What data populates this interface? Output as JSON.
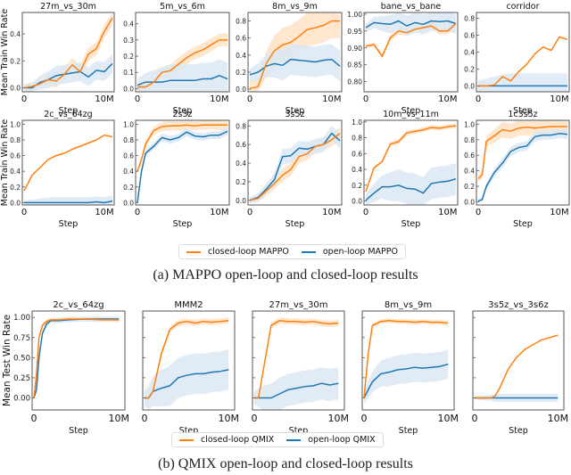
{
  "colors": {
    "closed": "#ff7f0e",
    "open": "#1f77b4",
    "closed_band": "#ffe3c7",
    "open_band": "#dbe8f4"
  },
  "captions": {
    "a": "(a) MAPPO open-loop and closed-loop results",
    "b": "(b) QMIX open-loop and closed-loop results"
  },
  "legends": {
    "mappo": {
      "closed": "closed-loop MAPPO",
      "open": "open-loop MAPPO"
    },
    "qmix": {
      "closed": "closed-loop QMIX",
      "open": "open-loop QMIX"
    }
  },
  "chart_data": [
    {
      "type": "line",
      "group": "mappo",
      "title": "27m_vs_30m",
      "xlabel": "Step",
      "ylabel": "Mean Train Win Rate",
      "xlim": [
        0,
        11
      ],
      "xticks": [
        "0",
        "10M"
      ],
      "ylim": [
        -0.03,
        0.56
      ],
      "yticks": [
        0.0,
        0.2,
        0.4
      ],
      "ytick_labels": [
        "0.0",
        "0.2",
        "0.4"
      ],
      "x": [
        0,
        1,
        2,
        3,
        4,
        5,
        6,
        7,
        8,
        9,
        10,
        11
      ],
      "series": [
        {
          "name": "closed-loop MAPPO",
          "values": [
            0,
            0.01,
            0.03,
            0.06,
            0.05,
            0.1,
            0.17,
            0.12,
            0.25,
            0.29,
            0.42,
            0.52
          ]
        },
        {
          "name": "open-loop MAPPO",
          "values": [
            0,
            0.0,
            0.04,
            0.06,
            0.09,
            0.1,
            0.11,
            0.12,
            0.08,
            0.13,
            0.12,
            0.18
          ]
        }
      ]
    },
    {
      "type": "line",
      "group": "mappo",
      "title": "5m_vs_6m",
      "xlabel": "Step",
      "ylabel": "",
      "xlim": [
        0,
        11
      ],
      "xticks": [
        "0",
        "10M"
      ],
      "ylim": [
        -0.02,
        0.47
      ],
      "yticks": [
        0.0,
        0.1,
        0.2,
        0.3,
        0.4
      ],
      "ytick_labels": [
        "0.0",
        "0.1",
        "0.2",
        "0.3",
        "0.4"
      ],
      "x": [
        0,
        1,
        2,
        3,
        4,
        5,
        6,
        7,
        8,
        9,
        10,
        11
      ],
      "series": [
        {
          "name": "closed-loop MAPPO",
          "values": [
            0.01,
            0.01,
            0.04,
            0.1,
            0.11,
            0.15,
            0.19,
            0.22,
            0.24,
            0.27,
            0.3,
            0.3
          ]
        },
        {
          "name": "open-loop MAPPO",
          "values": [
            0.02,
            0.04,
            0.04,
            0.04,
            0.05,
            0.05,
            0.05,
            0.05,
            0.06,
            0.06,
            0.08,
            0.06
          ]
        }
      ]
    },
    {
      "type": "line",
      "group": "mappo",
      "title": "8m_vs_9m",
      "xlabel": "Step",
      "ylabel": "",
      "xlim": [
        0,
        11
      ],
      "xticks": [
        "0",
        "10M"
      ],
      "ylim": [
        -0.03,
        0.9
      ],
      "yticks": [
        0.0,
        0.2,
        0.4,
        0.6,
        0.8
      ],
      "ytick_labels": [
        "0.0",
        "0.2",
        "0.4",
        "0.6",
        "0.8"
      ],
      "x": [
        0,
        1,
        2,
        3,
        4,
        5,
        6,
        7,
        8,
        9,
        10,
        11
      ],
      "series": [
        {
          "name": "closed-loop MAPPO",
          "values": [
            0.01,
            0.03,
            0.3,
            0.45,
            0.52,
            0.55,
            0.62,
            0.7,
            0.72,
            0.75,
            0.8,
            0.8
          ]
        },
        {
          "name": "open-loop MAPPO",
          "values": [
            0.17,
            0.2,
            0.27,
            0.3,
            0.28,
            0.35,
            0.34,
            0.33,
            0.32,
            0.34,
            0.35,
            0.27
          ]
        }
      ]
    },
    {
      "type": "line",
      "group": "mappo",
      "title": "bane_vs_bane",
      "xlabel": "Step",
      "ylabel": "",
      "xlim": [
        0,
        11
      ],
      "xticks": [
        "0",
        "10M"
      ],
      "ylim": [
        0.77,
        1.005
      ],
      "yticks": [
        0.8,
        0.85,
        0.9,
        0.95,
        1.0
      ],
      "ytick_labels": [
        "0.80",
        "0.85",
        "0.90",
        "0.95",
        "1.00"
      ],
      "x": [
        0,
        1,
        2,
        3,
        4,
        5,
        6,
        7,
        8,
        9,
        10,
        11
      ],
      "series": [
        {
          "name": "closed-loop MAPPO",
          "values": [
            0.905,
            0.91,
            0.875,
            0.93,
            0.95,
            0.945,
            0.955,
            0.96,
            0.965,
            0.95,
            0.95,
            0.972
          ]
        },
        {
          "name": "open-loop MAPPO",
          "values": [
            0.96,
            0.975,
            0.972,
            0.97,
            0.98,
            0.965,
            0.975,
            0.97,
            0.98,
            0.978,
            0.98,
            0.972
          ]
        }
      ]
    },
    {
      "type": "line",
      "group": "mappo",
      "title": "corridor",
      "xlabel": "Step",
      "ylabel": "",
      "xlim": [
        0,
        11
      ],
      "xticks": [
        "0",
        "10M"
      ],
      "ylim": [
        -0.07,
        0.87
      ],
      "yticks": [
        0.0,
        0.2,
        0.4,
        0.6,
        0.8
      ],
      "ytick_labels": [
        "0.0",
        "0.2",
        "0.4",
        "0.6",
        "0.8"
      ],
      "x": [
        0,
        1,
        2,
        3,
        4,
        5,
        6,
        7,
        8,
        9,
        10,
        11
      ],
      "series": [
        {
          "name": "closed-loop MAPPO",
          "values": [
            0,
            0,
            0.01,
            0.11,
            0.06,
            0.17,
            0.26,
            0.38,
            0.46,
            0.42,
            0.58,
            0.55
          ]
        },
        {
          "name": "open-loop MAPPO",
          "values": [
            0,
            0,
            0,
            0,
            0,
            0,
            0,
            0,
            0,
            0,
            0,
            0
          ]
        }
      ]
    },
    {
      "type": "line",
      "group": "mappo",
      "title": "2c_vs_64zg",
      "xlabel": "Step",
      "ylabel": "Mean Train Win Rate",
      "xlim": [
        0,
        11
      ],
      "xticks": [
        "0",
        "10M"
      ],
      "ylim": [
        -0.03,
        1.05
      ],
      "yticks": [
        0.0,
        0.2,
        0.4,
        0.6,
        0.8,
        1.0
      ],
      "ytick_labels": [
        "0.0",
        "0.2",
        "0.4",
        "0.6",
        "0.8",
        "1.0"
      ],
      "x": [
        0,
        1,
        2,
        3,
        4,
        5,
        6,
        7,
        8,
        9,
        10,
        11
      ],
      "series": [
        {
          "name": "closed-loop MAPPO",
          "values": [
            0.15,
            0.35,
            0.45,
            0.55,
            0.6,
            0.63,
            0.68,
            0.72,
            0.76,
            0.8,
            0.86,
            0.84
          ]
        },
        {
          "name": "open-loop MAPPO",
          "values": [
            0,
            0,
            0,
            0,
            0,
            0,
            0,
            0,
            0,
            0.01,
            0.0,
            0.02
          ]
        }
      ]
    },
    {
      "type": "line",
      "group": "mappo",
      "title": "2s3z",
      "xlabel": "Step",
      "ylabel": "",
      "xlim": [
        0,
        11
      ],
      "xticks": [
        "0",
        "10M"
      ],
      "ylim": [
        -0.03,
        1.05
      ],
      "yticks": [
        0.0,
        0.2,
        0.4,
        0.6,
        0.8,
        1.0
      ],
      "ytick_labels": [
        "0.0",
        "0.2",
        "0.4",
        "0.6",
        "0.8",
        "1.0"
      ],
      "x": [
        0,
        0.5,
        1,
        2,
        3,
        4,
        5,
        6,
        7,
        8,
        9,
        10,
        11
      ],
      "series": [
        {
          "name": "closed-loop MAPPO",
          "values": [
            0.4,
            0.55,
            0.75,
            0.92,
            0.97,
            0.98,
            0.98,
            0.99,
            0.98,
            0.99,
            0.99,
            0.99,
            0.99
          ]
        },
        {
          "name": "open-loop MAPPO",
          "values": [
            0.0,
            0.4,
            0.63,
            0.72,
            0.83,
            0.8,
            0.83,
            0.9,
            0.85,
            0.84,
            0.86,
            0.86,
            0.91
          ]
        }
      ]
    },
    {
      "type": "line",
      "group": "mappo",
      "title": "3s5z",
      "xlabel": "Step",
      "ylabel": "",
      "xlim": [
        0,
        11
      ],
      "xticks": [
        "0",
        "10M"
      ],
      "ylim": [
        -0.05,
        0.86
      ],
      "yticks": [
        0.0,
        0.2,
        0.4,
        0.6,
        0.8
      ],
      "ytick_labels": [
        "0.0",
        "0.2",
        "0.4",
        "0.6",
        "0.8"
      ],
      "x": [
        0,
        1,
        2,
        3,
        4,
        5,
        6,
        7,
        8,
        9,
        10,
        11
      ],
      "series": [
        {
          "name": "closed-loop MAPPO",
          "values": [
            0,
            0.02,
            0.1,
            0.18,
            0.27,
            0.33,
            0.47,
            0.5,
            0.58,
            0.6,
            0.65,
            0.72
          ]
        },
        {
          "name": "open-loop MAPPO",
          "values": [
            0,
            0.03,
            0.12,
            0.22,
            0.47,
            0.48,
            0.56,
            0.55,
            0.58,
            0.6,
            0.72,
            0.64
          ]
        }
      ]
    },
    {
      "type": "line",
      "group": "mappo",
      "title": "10m_vs_11m",
      "xlabel": "Step",
      "ylabel": "",
      "xlim": [
        0,
        11
      ],
      "xticks": [
        "0",
        "10M"
      ],
      "ylim": [
        -0.05,
        1.02
      ],
      "yticks": [
        0.0,
        0.2,
        0.4,
        0.6,
        0.8,
        1.0
      ],
      "ytick_labels": [
        "0.0",
        "0.2",
        "0.4",
        "0.6",
        "0.8",
        "1.0"
      ],
      "x": [
        0,
        1,
        2,
        3,
        4,
        5,
        6,
        7,
        8,
        9,
        10,
        11
      ],
      "series": [
        {
          "name": "closed-loop MAPPO",
          "values": [
            0.12,
            0.42,
            0.5,
            0.72,
            0.75,
            0.86,
            0.88,
            0.9,
            0.93,
            0.92,
            0.94,
            0.95
          ]
        },
        {
          "name": "open-loop MAPPO",
          "values": [
            0.01,
            0.1,
            0.18,
            0.18,
            0.2,
            0.16,
            0.15,
            0.1,
            0.22,
            0.24,
            0.25,
            0.28
          ]
        }
      ]
    },
    {
      "type": "line",
      "group": "mappo",
      "title": "1c3s5z",
      "xlabel": "Step",
      "ylabel": "",
      "xlim": [
        0,
        11
      ],
      "xticks": [
        "0",
        "10M"
      ],
      "ylim": [
        -0.04,
        1.05
      ],
      "yticks": [
        0.0,
        0.2,
        0.4,
        0.6,
        0.8,
        1.0
      ],
      "ytick_labels": [
        "0.0",
        "0.2",
        "0.4",
        "0.6",
        "0.8",
        "1.0"
      ],
      "x": [
        0,
        0.5,
        1,
        2,
        3,
        4,
        5,
        6,
        7,
        8,
        9,
        10,
        11
      ],
      "series": [
        {
          "name": "closed-loop MAPPO",
          "values": [
            0.3,
            0.35,
            0.78,
            0.85,
            0.93,
            0.91,
            0.95,
            0.96,
            0.95,
            0.96,
            0.97,
            0.97,
            0.97
          ]
        },
        {
          "name": "open-loop MAPPO",
          "values": [
            0.01,
            0.03,
            0.2,
            0.38,
            0.5,
            0.65,
            0.7,
            0.72,
            0.84,
            0.86,
            0.86,
            0.88,
            0.87
          ]
        }
      ]
    },
    {
      "type": "line",
      "group": "qmix",
      "title": "2c_vs_64zg",
      "xlabel": "Step",
      "ylabel": "Mean Test Win Rate",
      "xlim": [
        0,
        10.5
      ],
      "xticks": [
        "0",
        "10M"
      ],
      "ylim": [
        -0.15,
        1.08
      ],
      "yticks": [
        0.0,
        0.25,
        0.5,
        0.75,
        1.0
      ],
      "ytick_labels": [
        "0.00",
        "0.25",
        "0.50",
        "0.75",
        "1.00"
      ],
      "x": [
        0,
        0.3,
        0.6,
        1,
        1.5,
        2,
        3,
        4,
        6,
        8,
        10
      ],
      "series": [
        {
          "name": "closed-loop QMIX",
          "values": [
            0.0,
            0.3,
            0.75,
            0.9,
            0.95,
            0.97,
            0.97,
            0.98,
            0.98,
            0.97,
            0.97
          ]
        },
        {
          "name": "open-loop QMIX",
          "values": [
            0.0,
            0.1,
            0.5,
            0.8,
            0.92,
            0.96,
            0.96,
            0.97,
            0.98,
            0.98,
            0.98
          ]
        }
      ]
    },
    {
      "type": "line",
      "group": "qmix",
      "title": "MMM2",
      "xlabel": "Step",
      "ylabel": "",
      "xlim": [
        0,
        10.5
      ],
      "xticks": [
        "0",
        "10M"
      ],
      "ylim": [
        -0.15,
        1.08
      ],
      "yticks": [
        0.0,
        0.25,
        0.5,
        0.75,
        1.0
      ],
      "ytick_labels": [],
      "x": [
        0,
        0.5,
        1,
        2,
        3,
        4,
        5,
        6,
        7,
        8,
        9,
        10
      ],
      "series": [
        {
          "name": "closed-loop QMIX",
          "values": [
            0,
            0.0,
            0.08,
            0.55,
            0.85,
            0.93,
            0.95,
            0.93,
            0.95,
            0.94,
            0.95,
            0.96
          ]
        },
        {
          "name": "open-loop QMIX",
          "values": [
            0,
            0.0,
            0.08,
            0.12,
            0.15,
            0.25,
            0.28,
            0.3,
            0.3,
            0.32,
            0.33,
            0.35
          ]
        }
      ]
    },
    {
      "type": "line",
      "group": "qmix",
      "title": "27m_vs_30m",
      "xlabel": "Step",
      "ylabel": "",
      "xlim": [
        0,
        10.5
      ],
      "xticks": [
        "0",
        "10M"
      ],
      "ylim": [
        -0.15,
        1.08
      ],
      "yticks": [
        0.0,
        0.25,
        0.5,
        0.75,
        1.0
      ],
      "ytick_labels": [],
      "x": [
        0,
        0.5,
        1,
        2,
        3,
        4,
        5,
        6,
        7,
        8,
        9,
        10
      ],
      "series": [
        {
          "name": "closed-loop QMIX",
          "values": [
            0,
            0.0,
            0.3,
            0.9,
            0.96,
            0.95,
            0.95,
            0.94,
            0.95,
            0.93,
            0.92,
            0.93
          ]
        },
        {
          "name": "open-loop QMIX",
          "values": [
            0,
            0,
            0,
            0,
            0.05,
            0.1,
            0.12,
            0.14,
            0.15,
            0.18,
            0.16,
            0.18
          ]
        }
      ]
    },
    {
      "type": "line",
      "group": "qmix",
      "title": "8m_vs_9m",
      "xlabel": "Step",
      "ylabel": "",
      "xlim": [
        0,
        10.5
      ],
      "xticks": [
        "0",
        "10M"
      ],
      "ylim": [
        -0.15,
        1.08
      ],
      "yticks": [
        0.0,
        0.25,
        0.5,
        0.75,
        1.0
      ],
      "ytick_labels": [],
      "x": [
        0,
        0.5,
        1,
        2,
        3,
        4,
        5,
        6,
        7,
        8,
        9,
        10
      ],
      "series": [
        {
          "name": "closed-loop QMIX",
          "values": [
            0.0,
            0.55,
            0.9,
            0.95,
            0.96,
            0.95,
            0.95,
            0.94,
            0.95,
            0.94,
            0.94,
            0.93
          ]
        },
        {
          "name": "open-loop QMIX",
          "values": [
            0.0,
            0.1,
            0.2,
            0.3,
            0.32,
            0.35,
            0.36,
            0.38,
            0.37,
            0.38,
            0.39,
            0.42
          ]
        }
      ]
    },
    {
      "type": "line",
      "group": "qmix",
      "title": "3s5z_vs_3s6z",
      "xlabel": "Step",
      "ylabel": "",
      "xlim": [
        0,
        10.5
      ],
      "xticks": [
        "0",
        "10M"
      ],
      "ylim": [
        -0.15,
        1.08
      ],
      "yticks": [
        0.0,
        0.25,
        0.5,
        0.75,
        1.0
      ],
      "ytick_labels": [],
      "x": [
        0,
        1,
        2,
        2.5,
        3,
        4,
        5,
        6,
        7,
        8,
        9,
        10
      ],
      "series": [
        {
          "name": "closed-loop QMIX",
          "values": [
            0,
            0,
            0.0,
            0.03,
            0.12,
            0.35,
            0.5,
            0.6,
            0.66,
            0.72,
            0.75,
            0.78
          ]
        },
        {
          "name": "open-loop QMIX",
          "values": [
            0,
            0,
            0,
            0,
            0,
            0,
            0,
            0,
            0,
            0,
            0,
            0
          ]
        }
      ]
    }
  ]
}
